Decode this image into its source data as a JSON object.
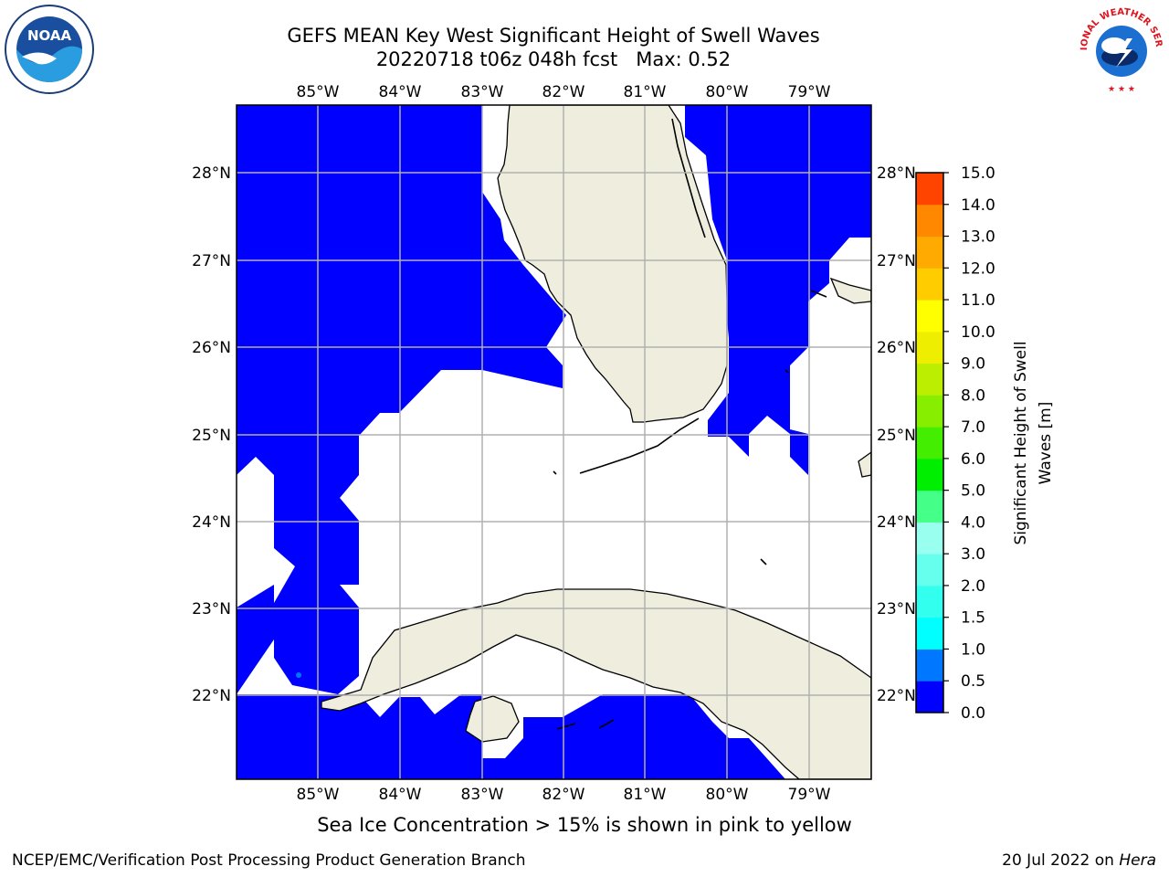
{
  "header": {
    "title_line1": "GEFS MEAN Key West Significant Height of Swell Waves",
    "title_line2": "20220718 t06z 048h fcst   Max: 0.52"
  },
  "logos": {
    "left": {
      "icon": "noaa-logo-icon",
      "text": "NOAA"
    },
    "right": {
      "icon": "nws-logo-icon",
      "text": "NATIONAL WEATHER SERVICE"
    }
  },
  "map": {
    "lon_labels": [
      "85°W",
      "84°W",
      "83°W",
      "82°W",
      "81°W",
      "80°W",
      "79°W"
    ],
    "lat_labels_left": [
      "28°N",
      "27°N",
      "26°N",
      "25°N",
      "24°N",
      "23°N",
      "22°N"
    ],
    "lat_labels_right": [
      "28°N",
      "27°N",
      "26°N",
      "25°N",
      "24°N",
      "23°N",
      "22°N"
    ],
    "colors": {
      "ocean_low": "#0000ff",
      "land": "#efeede",
      "grid": "#b0b0b0"
    }
  },
  "colorbar": {
    "label_line1": "Significant Height of Swell",
    "label_line2": "Waves [m]",
    "ticks": [
      "0.0",
      "0.5",
      "1.0",
      "1.5",
      "2.0",
      "3.0",
      "4.0",
      "5.0",
      "6.0",
      "7.0",
      "8.0",
      "9.0",
      "10.0",
      "11.0",
      "12.0",
      "13.0",
      "14.0",
      "15.0"
    ],
    "colors": [
      "#0000ff",
      "#0077ff",
      "#00ffff",
      "#33ffee",
      "#66ffee",
      "#99ffee",
      "#44ff88",
      "#00ee00",
      "#44ee00",
      "#88ee00",
      "#bbee00",
      "#eeee00",
      "#ffff00",
      "#ffcc00",
      "#ffaa00",
      "#ff8800",
      "#ff4400",
      "#ff0000"
    ]
  },
  "caption": "Sea Ice Concentration > 15% is shown in pink to yellow",
  "footer": {
    "left": "NCEP/EMC/Verification Post Processing Product Generation Branch",
    "right_prefix": "20 Jul 2022 on ",
    "right_host": "Hera"
  }
}
